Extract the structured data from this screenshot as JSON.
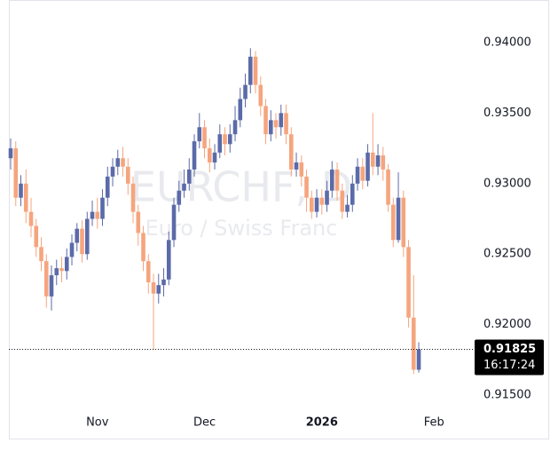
{
  "chart_data": {
    "type": "candlestick",
    "symbol": "EURCHF, D",
    "description": "Euro / Swiss Franc",
    "up_color": "#5b6aa8",
    "down_color": "#f5a57e",
    "open": [
      0.9318,
      0.9325,
      0.929,
      0.93,
      0.928,
      0.927,
      0.9255,
      0.9245,
      0.922,
      0.9235,
      0.924,
      0.9238,
      0.9248,
      0.9258,
      0.9268,
      0.925,
      0.9275,
      0.928,
      0.9275,
      0.929,
      0.9305,
      0.9312,
      0.9318,
      0.9312,
      0.93,
      0.928,
      0.9265,
      0.9245,
      0.923,
      0.9222,
      0.9228,
      0.9232,
      0.926,
      0.9285,
      0.9295,
      0.93,
      0.931,
      0.933,
      0.934,
      0.9325,
      0.9315,
      0.9322,
      0.9335,
      0.9328,
      0.9335,
      0.9345,
      0.936,
      0.937,
      0.939,
      0.937,
      0.9355,
      0.9335,
      0.9345,
      0.934,
      0.935,
      0.9335,
      0.931,
      0.9315,
      0.9305,
      0.929,
      0.928,
      0.929,
      0.9285,
      0.9295,
      0.931,
      0.9295,
      0.928,
      0.9285,
      0.93,
      0.9312,
      0.9302,
      0.9322,
      0.9312,
      0.932,
      0.931,
      0.9285,
      0.926,
      0.929,
      0.9255,
      0.9205,
      0.9168
    ],
    "high": [
      0.9332,
      0.933,
      0.9306,
      0.931,
      0.929,
      0.9275,
      0.9262,
      0.925,
      0.9242,
      0.9246,
      0.9248,
      0.9254,
      0.9264,
      0.9272,
      0.9274,
      0.928,
      0.9288,
      0.929,
      0.9296,
      0.9312,
      0.9318,
      0.9324,
      0.9326,
      0.9318,
      0.9305,
      0.9285,
      0.927,
      0.925,
      0.9236,
      0.9236,
      0.924,
      0.9266,
      0.929,
      0.9302,
      0.931,
      0.9318,
      0.9335,
      0.935,
      0.9345,
      0.9332,
      0.9328,
      0.9342,
      0.934,
      0.9342,
      0.9355,
      0.9368,
      0.9378,
      0.9396,
      0.9394,
      0.9376,
      0.936,
      0.9352,
      0.935,
      0.9356,
      0.9356,
      0.934,
      0.9322,
      0.932,
      0.931,
      0.9295,
      0.9296,
      0.9296,
      0.9302,
      0.9316,
      0.9315,
      0.93,
      0.9292,
      0.9306,
      0.9318,
      0.9318,
      0.9328,
      0.935,
      0.9328,
      0.9326,
      0.9314,
      0.929,
      0.9308,
      0.9295,
      0.926,
      0.9235,
      0.91875
    ],
    "low": [
      0.931,
      0.9284,
      0.9284,
      0.9272,
      0.9262,
      0.9248,
      0.9238,
      0.9212,
      0.921,
      0.9228,
      0.923,
      0.9232,
      0.9242,
      0.9252,
      0.9244,
      0.9246,
      0.927,
      0.9268,
      0.927,
      0.9284,
      0.9298,
      0.9306,
      0.9305,
      0.9292,
      0.9272,
      0.9256,
      0.9238,
      0.9222,
      0.9182,
      0.9215,
      0.922,
      0.9228,
      0.9255,
      0.928,
      0.929,
      0.9295,
      0.9305,
      0.9325,
      0.9318,
      0.9308,
      0.931,
      0.9318,
      0.932,
      0.9322,
      0.933,
      0.934,
      0.9354,
      0.9364,
      0.9364,
      0.9348,
      0.9328,
      0.933,
      0.9332,
      0.9334,
      0.9328,
      0.9305,
      0.9305,
      0.9298,
      0.928,
      0.9275,
      0.9276,
      0.9278,
      0.928,
      0.929,
      0.9288,
      0.9275,
      0.9276,
      0.928,
      0.9295,
      0.9296,
      0.9298,
      0.9306,
      0.9306,
      0.9302,
      0.928,
      0.9255,
      0.9258,
      0.9248,
      0.9198,
      0.9165,
      0.9166
    ],
    "close": [
      0.9325,
      0.929,
      0.93,
      0.928,
      0.927,
      0.9255,
      0.9245,
      0.922,
      0.9235,
      0.924,
      0.9238,
      0.9248,
      0.9258,
      0.9268,
      0.925,
      0.9275,
      0.928,
      0.9275,
      0.929,
      0.9305,
      0.9312,
      0.9318,
      0.9312,
      0.93,
      0.928,
      0.9265,
      0.9245,
      0.923,
      0.9222,
      0.9228,
      0.9232,
      0.926,
      0.9285,
      0.9295,
      0.93,
      0.931,
      0.933,
      0.934,
      0.9325,
      0.9315,
      0.9322,
      0.9335,
      0.9328,
      0.9335,
      0.9345,
      0.936,
      0.937,
      0.939,
      0.937,
      0.9355,
      0.9335,
      0.9345,
      0.934,
      0.935,
      0.9335,
      0.931,
      0.9315,
      0.9305,
      0.929,
      0.928,
      0.929,
      0.9285,
      0.9295,
      0.931,
      0.9295,
      0.928,
      0.9285,
      0.93,
      0.9312,
      0.9302,
      0.9322,
      0.9312,
      0.932,
      0.931,
      0.9285,
      0.926,
      0.929,
      0.9255,
      0.9205,
      0.9168,
      0.91825
    ],
    "xlim": [
      -0.35,
      90.6
    ],
    "xticks": [
      {
        "value": 17,
        "label": "Nov"
      },
      {
        "value": 38,
        "label": "Dec"
      },
      {
        "value": 61,
        "label": "2026"
      },
      {
        "value": 83,
        "label": "Feb"
      }
    ],
    "ylim": [
      0.91406,
      0.94302
    ],
    "yticks": [
      {
        "value": 0.915,
        "label": "0.91500"
      },
      {
        "value": 0.92,
        "label": "0.92000"
      },
      {
        "value": 0.925,
        "label": "0.92500"
      },
      {
        "value": 0.93,
        "label": "0.93000"
      },
      {
        "value": 0.935,
        "label": "0.93500"
      },
      {
        "value": 0.94,
        "label": "0.94000"
      }
    ],
    "last_price": {
      "value": 0.91825,
      "label": "0.91825"
    },
    "countdown": "16:17:24"
  }
}
